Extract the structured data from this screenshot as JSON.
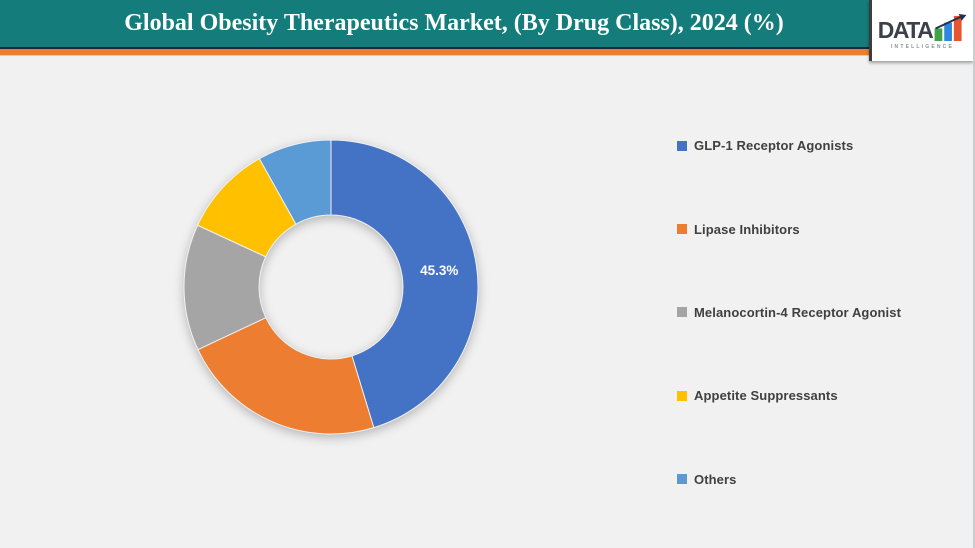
{
  "header": {
    "title": "Global Obesity Therapeutics Market, (By Drug Class), 2024 (%)",
    "teal_color": "#147C7A",
    "navy_color": "#1B2440",
    "orange_color": "#E87E2E"
  },
  "logo": {
    "text": "DATA",
    "subtext": "INTELLIGENCE",
    "bar_colors": [
      "#3FA445",
      "#2E86DE",
      "#E8542F"
    ],
    "arrow_color": "#22304F"
  },
  "chart_data": {
    "type": "pie",
    "variant": "donut",
    "title": "Global Obesity Therapeutics Market, (By Drug Class), 2024 (%)",
    "categories": [
      "GLP-1 Receptor Agonists",
      "Lipase Inhibitors",
      "Melanocortin-4 Receptor Agonist",
      "Appetite Suppressants",
      "Others"
    ],
    "values": [
      45.3,
      22.7,
      13.9,
      10.0,
      8.1
    ],
    "colors": [
      "#4472C4",
      "#ED7D31",
      "#A5A5A5",
      "#FFC000",
      "#5B9BD5"
    ],
    "data_labels": [
      {
        "index": 0,
        "text": "45.3%"
      }
    ],
    "labeled_indices": [
      0
    ],
    "hole_ratio": 0.49,
    "start_angle_deg": 0,
    "direction": "clockwise",
    "legend_position": "right",
    "background": "#F1F1F1"
  }
}
